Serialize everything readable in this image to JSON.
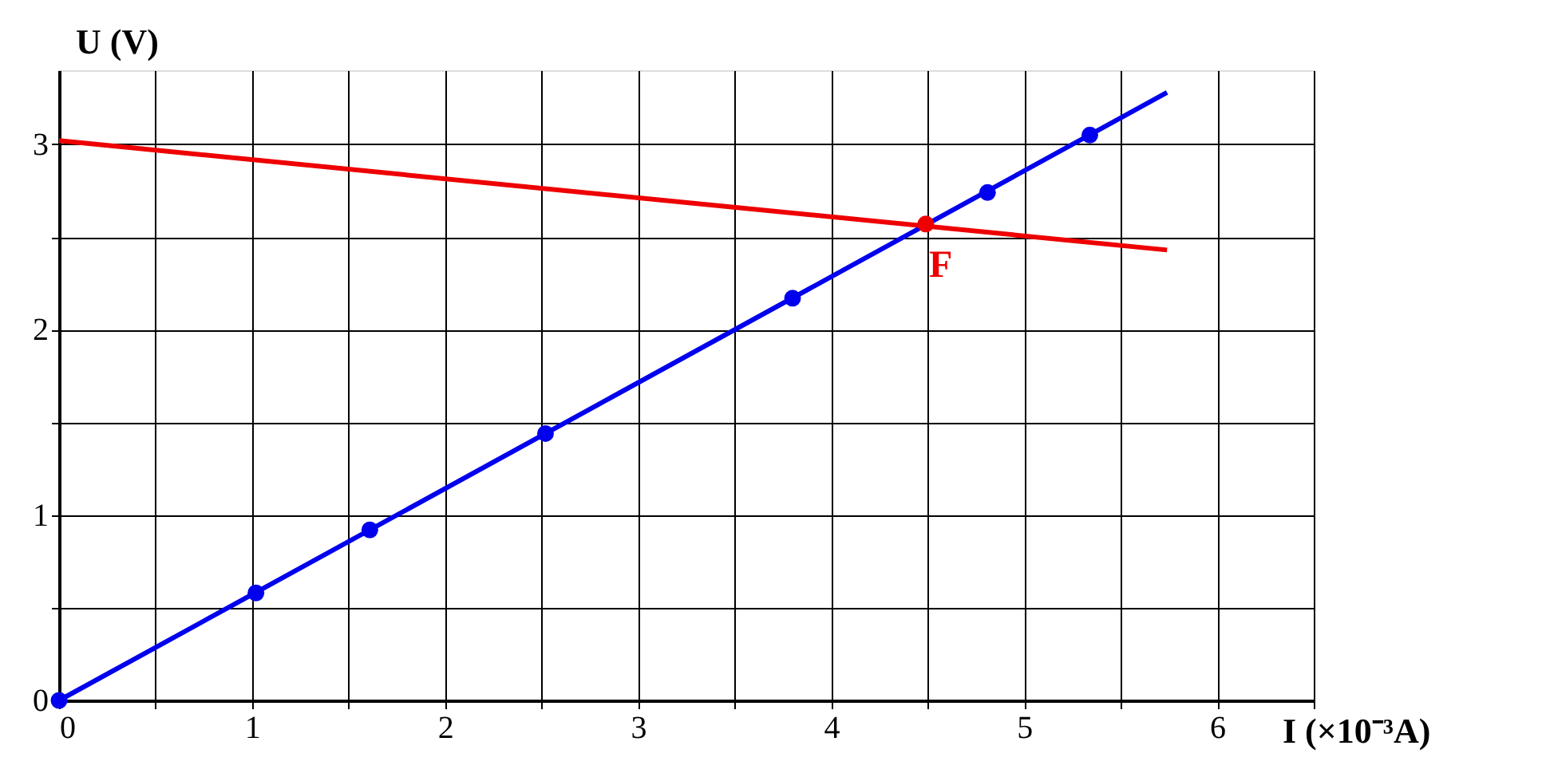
{
  "chart_data": {
    "type": "line",
    "xlabel": "I (×10⁻³A)",
    "ylabel": "U (V)",
    "xlim": [
      0,
      6.5
    ],
    "ylim": [
      0,
      3.4
    ],
    "xticks": [
      0,
      {
        "value": 0.5,
        "label": null
      },
      1,
      {
        "value": 1.5,
        "label": null
      },
      2,
      {
        "value": 2.5,
        "label": null
      },
      3,
      {
        "value": 3.5,
        "label": null
      },
      4,
      {
        "value": 4.5,
        "label": null
      },
      5,
      {
        "value": 5.5,
        "label": null
      },
      6,
      {
        "value": 6.5,
        "label": null
      }
    ],
    "yticks": [
      0,
      {
        "value": 0.5,
        "label": null
      },
      1,
      {
        "value": 1.5,
        "label": null
      },
      2,
      {
        "value": 2.5,
        "label": null
      },
      3
    ],
    "grid": true,
    "legend": false,
    "series": [
      {
        "color": "#0000ee",
        "x": [
          0,
          5.74
        ],
        "values": [
          0,
          3.28
        ],
        "marker": "none"
      },
      {
        "type": "scatter",
        "color": "#0000ee",
        "x": [
          0,
          1.02,
          1.61,
          2.52,
          3.8,
          4.81,
          5.34
        ],
        "values": [
          0,
          0.58,
          0.92,
          1.44,
          2.17,
          2.74,
          3.05
        ],
        "marker": "circle"
      },
      {
        "color": "#ee0000",
        "x": [
          0,
          5.74
        ],
        "values": [
          3.02,
          2.43
        ],
        "marker": "none"
      },
      {
        "type": "scatter",
        "color": "#ee0000",
        "x": [
          4.49
        ],
        "values": [
          2.57
        ],
        "marker": "circle"
      }
    ],
    "annotations": [
      {
        "text": "F",
        "x": 4.49,
        "y": 2.57
      }
    ]
  }
}
